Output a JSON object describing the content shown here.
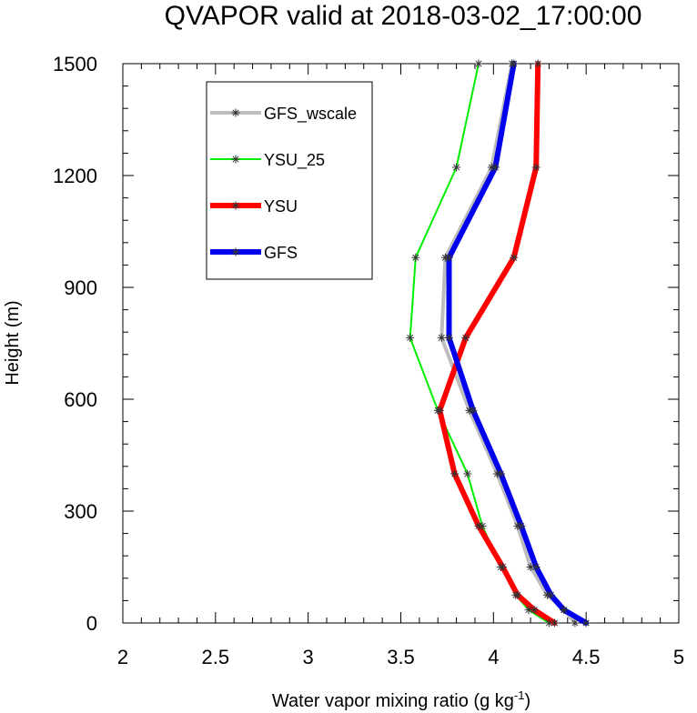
{
  "chart_data": {
    "type": "line",
    "title": "QVAPOR valid at 2018-03-02_17:00:00",
    "xlabel": "Water vapor mixing ratio (g kg",
    "xlabel_sup": "-1",
    "xlabel_end": ")",
    "ylabel": "Height (m)",
    "xlim": [
      2,
      5
    ],
    "ylim": [
      0,
      1500
    ],
    "xticks": [
      "2",
      "2.5",
      "3",
      "3.5",
      "4",
      "4.5",
      "5"
    ],
    "yticks": [
      "0",
      "300",
      "600",
      "900",
      "1200",
      "1500"
    ],
    "legend_position": "top-left",
    "marker": "asterisk",
    "series": [
      {
        "name": "GFS_wscale",
        "color": "#bdbdbd",
        "width": 4,
        "points": [
          [
            4.44,
            0
          ],
          [
            4.38,
            35
          ],
          [
            4.29,
            75
          ],
          [
            4.2,
            150
          ],
          [
            4.13,
            260
          ],
          [
            4.02,
            400
          ],
          [
            3.87,
            570
          ],
          [
            3.72,
            765
          ],
          [
            3.74,
            980
          ],
          [
            3.99,
            1222
          ],
          [
            4.1,
            1500
          ]
        ]
      },
      {
        "name": "YSU_25",
        "color": "#00ee00",
        "width": 2,
        "points": [
          [
            4.3,
            0
          ],
          [
            4.19,
            35
          ],
          [
            4.12,
            75
          ],
          [
            4.04,
            150
          ],
          [
            3.94,
            260
          ],
          [
            3.86,
            400
          ],
          [
            3.7,
            570
          ],
          [
            3.55,
            765
          ],
          [
            3.58,
            980
          ],
          [
            3.8,
            1222
          ],
          [
            3.92,
            1500
          ]
        ]
      },
      {
        "name": "YSU",
        "color": "#ff0000",
        "width": 6,
        "points": [
          [
            4.33,
            0
          ],
          [
            4.22,
            35
          ],
          [
            4.13,
            75
          ],
          [
            4.05,
            150
          ],
          [
            3.92,
            260
          ],
          [
            3.79,
            400
          ],
          [
            3.71,
            570
          ],
          [
            3.85,
            765
          ],
          [
            4.11,
            980
          ],
          [
            4.23,
            1222
          ],
          [
            4.24,
            1500
          ]
        ]
      },
      {
        "name": "GFS",
        "color": "#0000ee",
        "width": 6,
        "points": [
          [
            4.5,
            0
          ],
          [
            4.38,
            35
          ],
          [
            4.31,
            75
          ],
          [
            4.23,
            150
          ],
          [
            4.15,
            260
          ],
          [
            4.04,
            400
          ],
          [
            3.89,
            570
          ],
          [
            3.76,
            765
          ],
          [
            3.76,
            980
          ],
          [
            4.01,
            1222
          ],
          [
            4.11,
            1500
          ]
        ]
      }
    ]
  }
}
